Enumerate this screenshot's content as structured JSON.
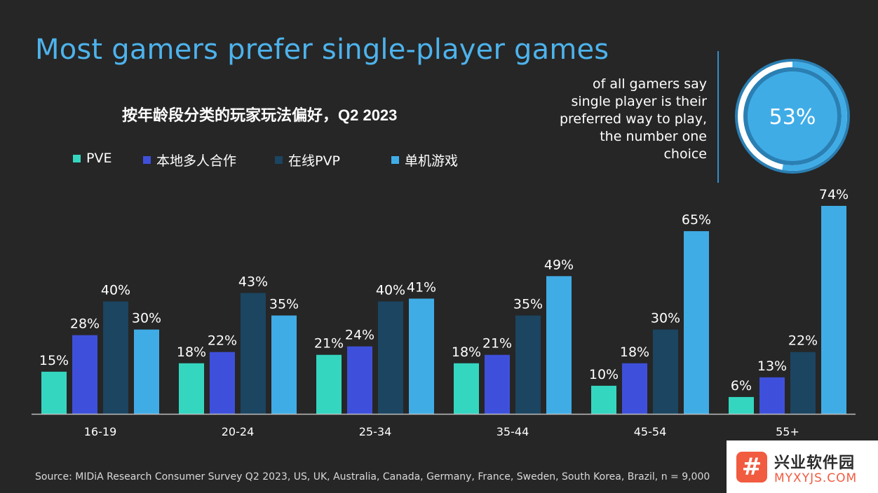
{
  "title": "Most gamers prefer single-player games",
  "chart_data": {
    "type": "bar",
    "title": "按年龄段分类的玩家玩法偏好，Q2 2023",
    "categories": [
      "16-19",
      "20-24",
      "25-34",
      "35-44",
      "45-54",
      "55+"
    ],
    "series": [
      {
        "name": "PVE",
        "color": "#35d6c0",
        "values": [
          15,
          18,
          21,
          18,
          10,
          6
        ]
      },
      {
        "name": "本地多人合作",
        "color": "#3e50db",
        "values": [
          28,
          22,
          24,
          21,
          18,
          13
        ]
      },
      {
        "name": "在线PVP",
        "color": "#1b4561",
        "values": [
          40,
          43,
          40,
          35,
          30,
          22
        ]
      },
      {
        "name": "单机游戏",
        "color": "#40ace6",
        "values": [
          30,
          35,
          41,
          49,
          65,
          74
        ]
      }
    ],
    "value_suffix": "%",
    "ylim": [
      0,
      74
    ],
    "grid": false,
    "legend": "top-left"
  },
  "callout": {
    "lines": [
      "of all gamers say",
      "single player is their",
      "preferred way to play,",
      "the number one",
      "choice"
    ],
    "percent_label": "53%",
    "percent": 53,
    "ring_color": "#40ace6",
    "ring_bg": "#ffffff"
  },
  "source": "Source: MIDiA Research Consumer Survey Q2 2023, US, UK, Australia, Canada, Germany, France, Sweden, South Korea, Brazil, n = 9,000",
  "watermark": {
    "logo_glyph": "#",
    "name": "兴业软件园",
    "domain": "MYXYJS.COM",
    "color": "#f15b40"
  }
}
